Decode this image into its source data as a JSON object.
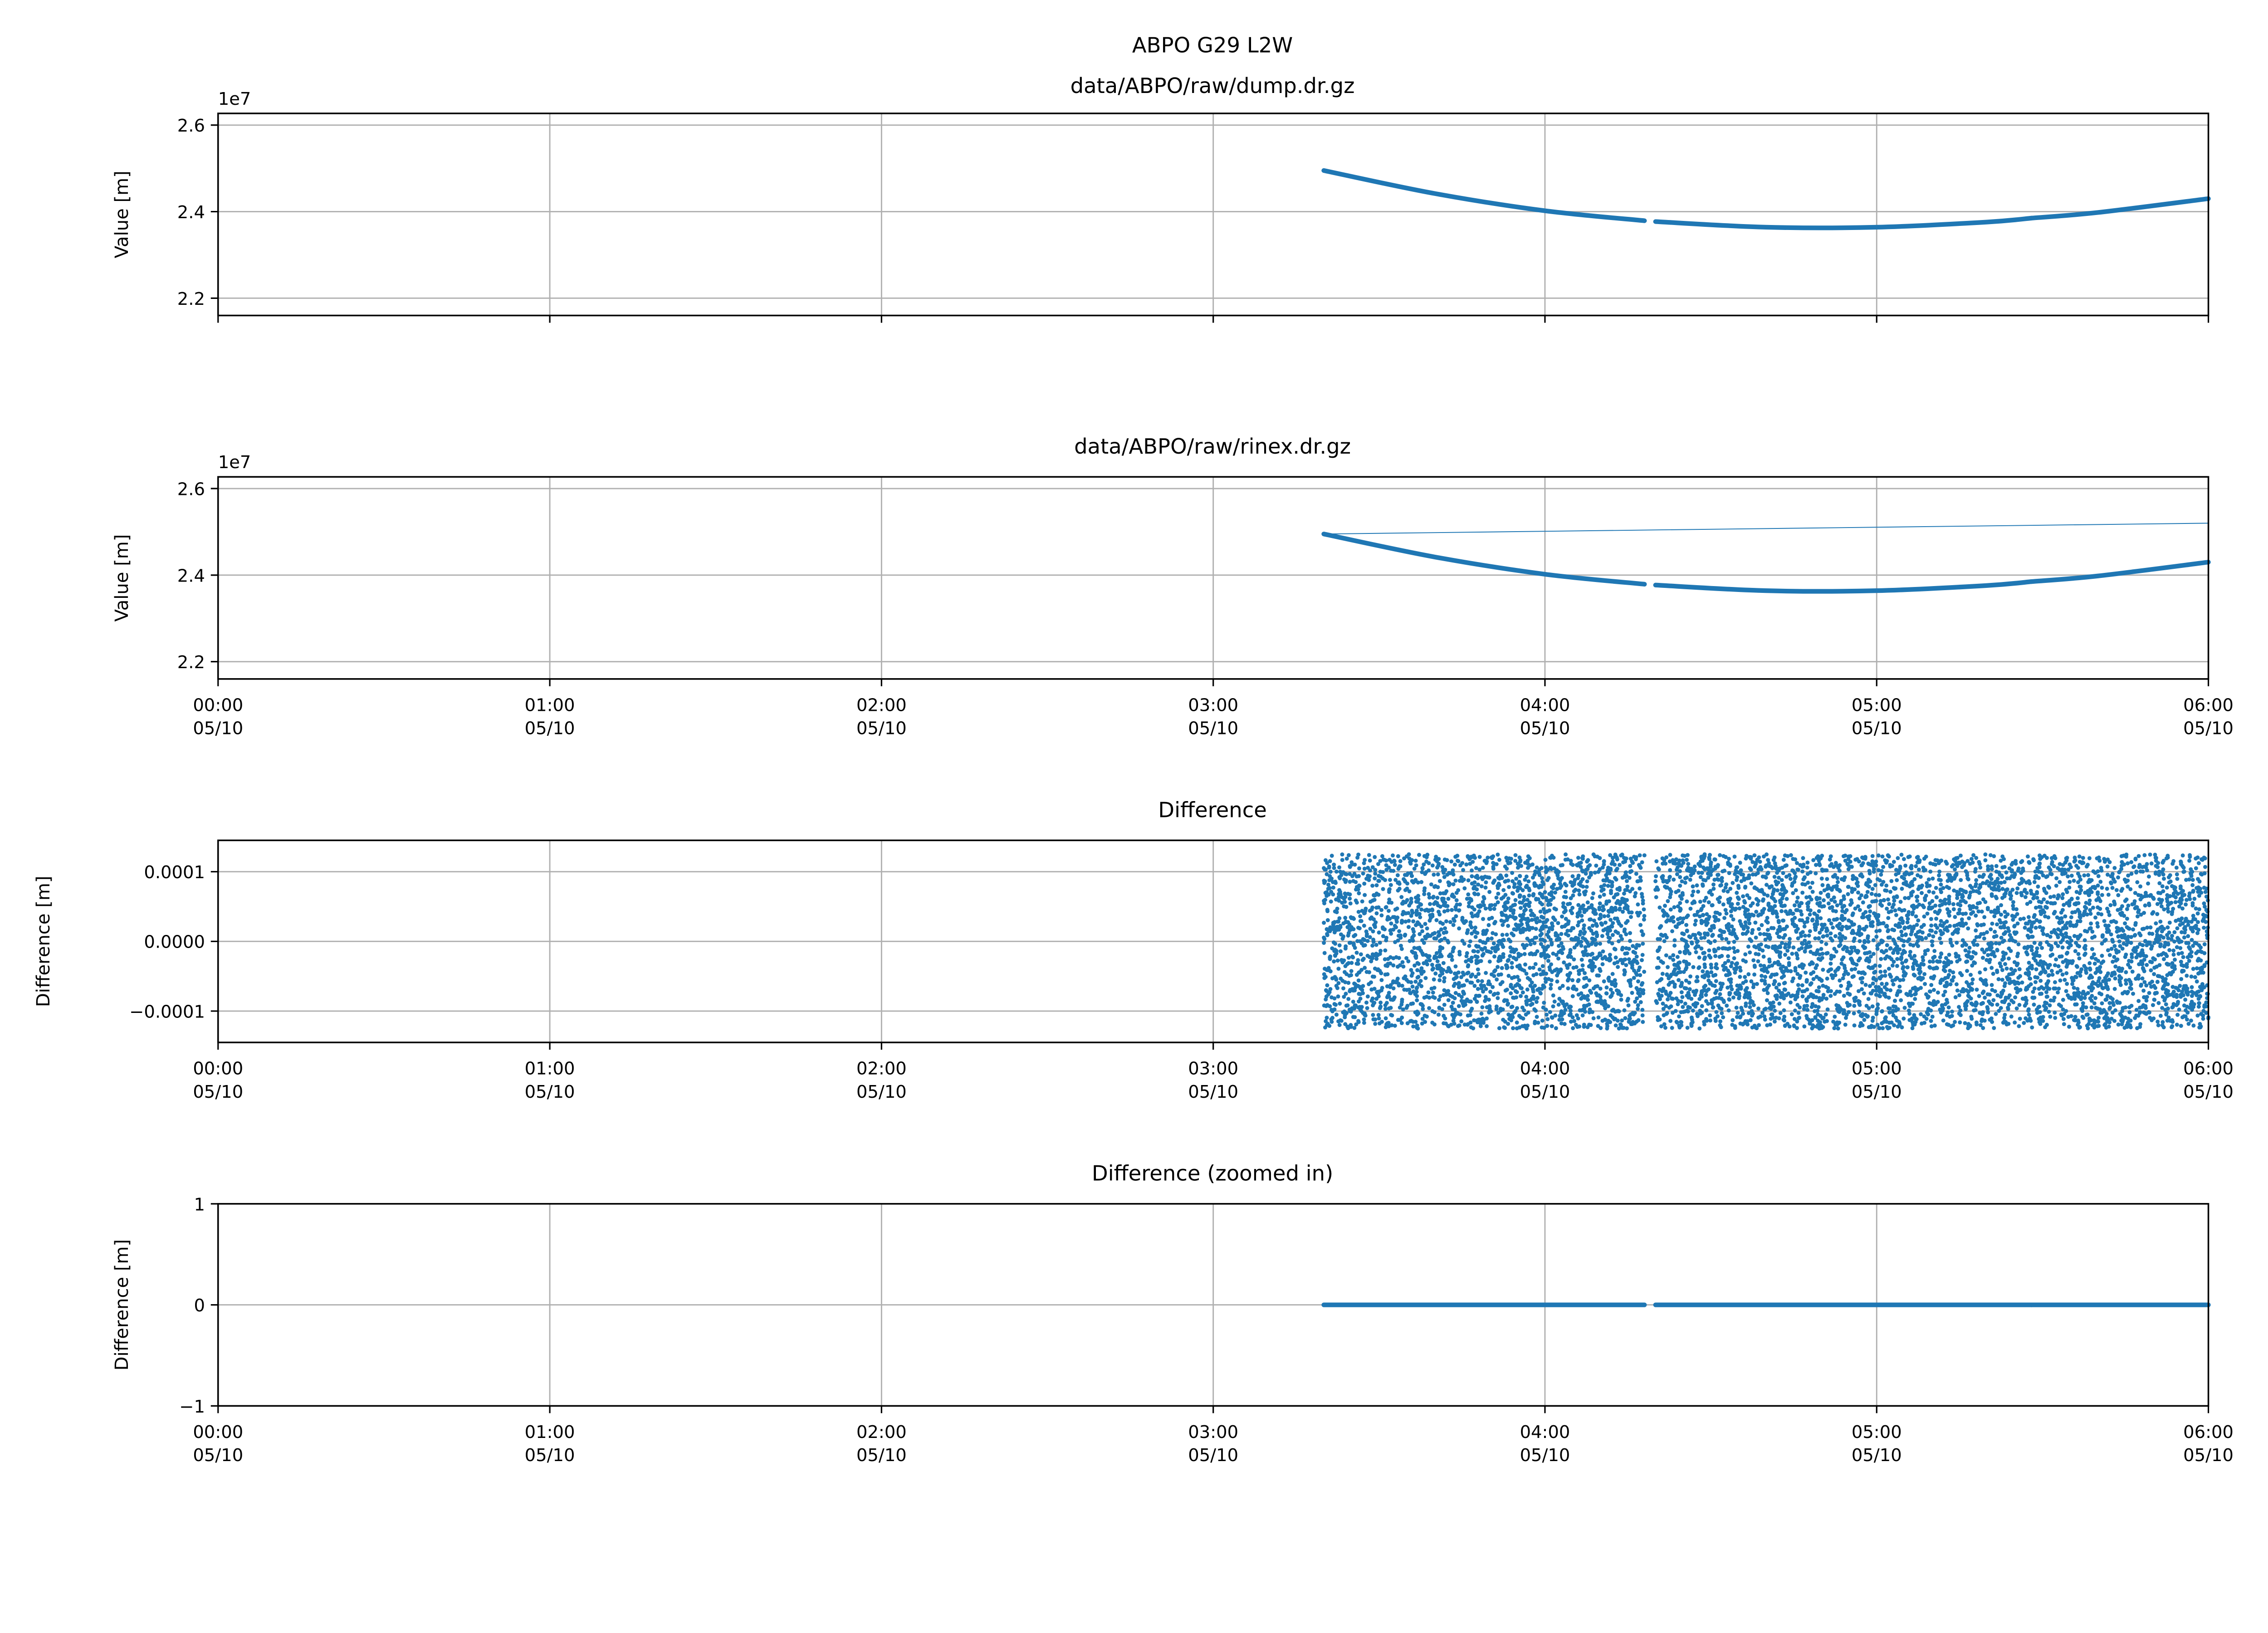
{
  "figure_title": "ABPO G29 L2W",
  "colors": {
    "series": "#1f77b4",
    "grid": "#b0b0b0"
  },
  "x_ticks": [
    {
      "time": "00:00",
      "date": "05/10"
    },
    {
      "time": "01:00",
      "date": "05/10"
    },
    {
      "time": "02:00",
      "date": "05/10"
    },
    {
      "time": "03:00",
      "date": "05/10"
    },
    {
      "time": "04:00",
      "date": "05/10"
    },
    {
      "time": "05:00",
      "date": "05/10"
    },
    {
      "time": "06:00",
      "date": "05/10"
    }
  ],
  "chart_data": [
    {
      "type": "line",
      "title": "data/ABPO/raw/dump.dr.gz",
      "ylabel": "Value [m]",
      "offset_label": "1e7",
      "xlim": [
        "05/10 00:00",
        "05/10 06:00"
      ],
      "ylim": [
        21600000,
        26270000
      ],
      "yticks": [
        "2.2",
        "2.4",
        "2.6"
      ],
      "ytick_values": [
        22000000,
        24000000,
        26000000
      ],
      "show_xtick_labels": false,
      "grid": true,
      "segments": [
        {
          "x": [
            "03:20",
            "03:40",
            "04:00",
            "04:18"
          ],
          "y": [
            24950000,
            24420000,
            24020000,
            23790000
          ]
        },
        {
          "x": [
            "04:20",
            "04:40",
            "05:00",
            "05:20",
            "05:28"
          ],
          "y": [
            23770000,
            23640000,
            23640000,
            23760000,
            23850000
          ]
        },
        {
          "x": [
            "05:28",
            "05:40",
            "06:00"
          ],
          "y": [
            23850000,
            23980000,
            24300000
          ]
        }
      ]
    },
    {
      "type": "line",
      "title": "data/ABPO/raw/rinex.dr.gz",
      "ylabel": "Value [m]",
      "offset_label": "1e7",
      "xlim": [
        "05/10 00:00",
        "05/10 06:00"
      ],
      "ylim": [
        21600000,
        26270000
      ],
      "yticks": [
        "2.2",
        "2.4",
        "2.6"
      ],
      "ytick_values": [
        22000000,
        24000000,
        26000000
      ],
      "show_xtick_labels": true,
      "grid": true,
      "segments": [
        {
          "x": [
            "03:20",
            "03:40",
            "04:00",
            "04:18"
          ],
          "y": [
            24950000,
            24420000,
            24020000,
            23790000
          ]
        },
        {
          "x": [
            "04:20",
            "04:40",
            "05:00",
            "05:20",
            "05:28"
          ],
          "y": [
            23770000,
            23640000,
            23640000,
            23760000,
            23850000
          ]
        },
        {
          "x": [
            "05:28",
            "05:40",
            "06:00"
          ],
          "y": [
            23850000,
            23980000,
            24300000
          ]
        }
      ],
      "thin_line": {
        "x": [
          "03:20",
          "06:00"
        ],
        "y": [
          24950000,
          25200000
        ]
      }
    },
    {
      "type": "scatter",
      "title": "Difference",
      "ylabel": "Difference [m]",
      "xlim": [
        "05/10 00:00",
        "05/10 06:00"
      ],
      "ylim": [
        -0.000145,
        0.000145
      ],
      "yticks": [
        "−0.0001",
        "0.0000",
        "0.0001"
      ],
      "ytick_values": [
        -0.0001,
        0,
        0.0001
      ],
      "show_xtick_labels": true,
      "grid": true,
      "noise_amplitude": 0.000125,
      "ranges": [
        [
          "03:20",
          "04:18"
        ],
        [
          "04:20",
          "05:28"
        ],
        [
          "05:28",
          "06:00"
        ]
      ]
    },
    {
      "type": "line",
      "title": "Difference (zoomed in)",
      "ylabel": "Difference [m]",
      "xlim": [
        "05/10 00:00",
        "05/10 06:00"
      ],
      "ylim": [
        -1,
        1
      ],
      "yticks": [
        "−1",
        "0",
        "1"
      ],
      "ytick_values": [
        -1,
        0,
        1
      ],
      "show_xtick_labels": true,
      "grid": true,
      "segments": [
        {
          "x": [
            "03:20",
            "04:18"
          ],
          "y": [
            0,
            0
          ]
        },
        {
          "x": [
            "04:20",
            "05:28"
          ],
          "y": [
            0,
            0
          ]
        },
        {
          "x": [
            "05:28",
            "06:00"
          ],
          "y": [
            0,
            0
          ]
        }
      ]
    }
  ]
}
